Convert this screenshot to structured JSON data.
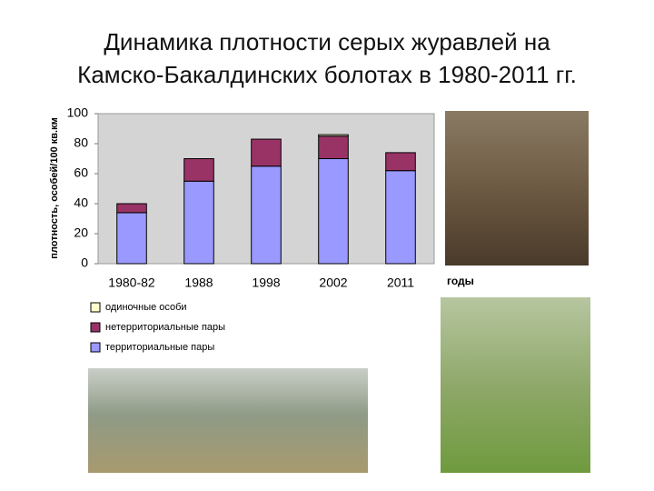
{
  "chart_data": {
    "type": "stacked-bar",
    "title": "Динамика плотности серых журавлей на\nКамско-Бакалдинских болотах в 1980-2011 гг.",
    "y_label": "плотность, особей/100 кв.км",
    "x_label": "годы",
    "categories": [
      "1980-82",
      "1988",
      "1998",
      "2002",
      "2011"
    ],
    "series": [
      {
        "name": "территориальные пары",
        "color": "#9999ff",
        "values": [
          34,
          55,
          65,
          70,
          62
        ]
      },
      {
        "name": "нетерриториальные пары",
        "color": "#993366",
        "values": [
          6,
          15,
          18,
          15,
          12
        ]
      },
      {
        "name": "одиночные особи",
        "color": "#ffffcc",
        "values": [
          0,
          0,
          0,
          1,
          0
        ]
      }
    ],
    "ylim": [
      0,
      100
    ],
    "yticks": [
      0,
      20,
      40,
      60,
      80,
      100
    ],
    "grid": false
  }
}
